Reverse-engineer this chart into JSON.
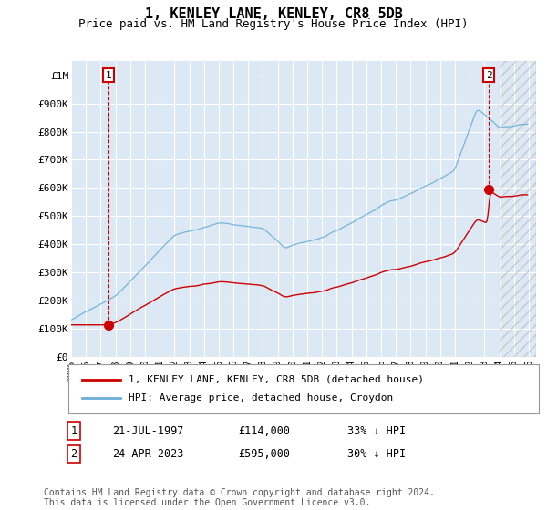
{
  "title": "1, KENLEY LANE, KENLEY, CR8 5DB",
  "subtitle": "Price paid vs. HM Land Registry's House Price Index (HPI)",
  "title_fontsize": 11,
  "subtitle_fontsize": 9,
  "ylabel_fontsize": 8,
  "xlabel_fontsize": 7,
  "ylim": [
    0,
    1050000
  ],
  "yticks": [
    0,
    100000,
    200000,
    300000,
    400000,
    500000,
    600000,
    700000,
    800000,
    900000,
    1000000
  ],
  "ytick_labels": [
    "£0",
    "£100K",
    "£200K",
    "£300K",
    "£400K",
    "£500K",
    "£600K",
    "£700K",
    "£800K",
    "£900K",
    "£1M"
  ],
  "hpi_color": "#6baed6",
  "price_color": "#cc0000",
  "annotation_box_color": "#cc0000",
  "background_color": "#ffffff",
  "plot_bg_color": "#dce9f5",
  "grid_color": "#ffffff",
  "legend_label_price": "1, KENLEY LANE, KENLEY, CR8 5DB (detached house)",
  "legend_label_hpi": "HPI: Average price, detached house, Croydon",
  "sale1_label": "1",
  "sale1_date": "21-JUL-1997",
  "sale1_price": "£114,000",
  "sale1_note": "33% ↓ HPI",
  "sale1_x": 1997.55,
  "sale1_y": 114000,
  "sale2_label": "2",
  "sale2_date": "24-APR-2023",
  "sale2_price": "£595,000",
  "sale2_note": "30% ↓ HPI",
  "sale2_x": 2023.3,
  "sale2_y": 595000,
  "footer": "Contains HM Land Registry data © Crown copyright and database right 2024.\nThis data is licensed under the Open Government Licence v3.0.",
  "xmin": 1995.0,
  "xmax": 2026.5
}
